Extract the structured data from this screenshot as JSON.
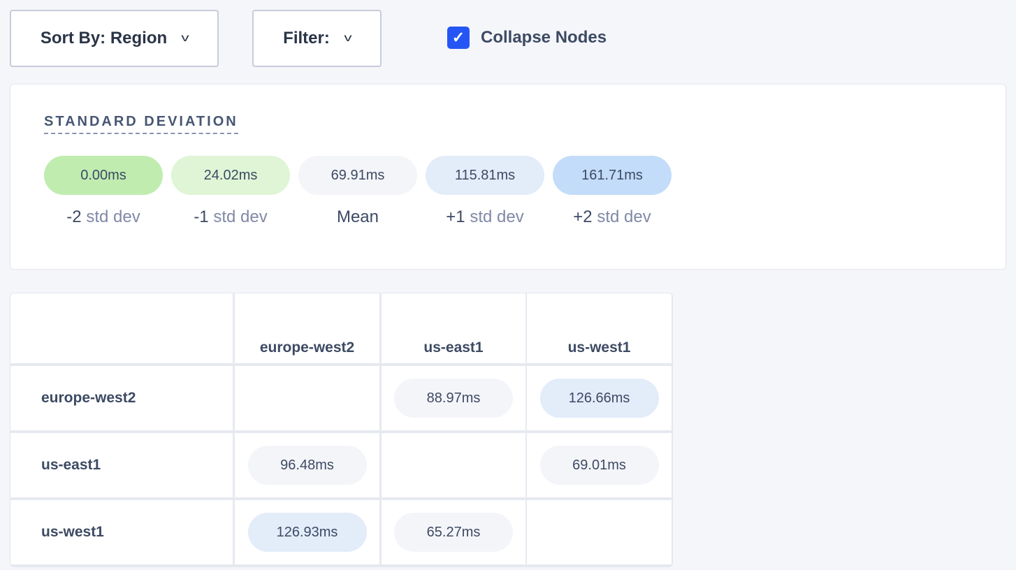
{
  "toolbar": {
    "sort_label": "Sort By: Region",
    "filter_label": "Filter:",
    "collapse_label": "Collapse Nodes",
    "collapse_checked": true
  },
  "legend": {
    "title": "STANDARD DEVIATION",
    "items": [
      {
        "value": "0.00ms",
        "prefix": "-2",
        "suffix": "std dev",
        "color": "#c0ecb0"
      },
      {
        "value": "24.02ms",
        "prefix": "-1",
        "suffix": "std dev",
        "color": "#dff5d6"
      },
      {
        "value": "69.91ms",
        "prefix": "Mean",
        "suffix": "",
        "color": "#f4f5f9"
      },
      {
        "value": "115.81ms",
        "prefix": "+1",
        "suffix": "std dev",
        "color": "#e3ecf9"
      },
      {
        "value": "161.71ms",
        "prefix": "+2",
        "suffix": "std dev",
        "color": "#c3dcf9"
      }
    ]
  },
  "matrix": {
    "columns": [
      "europe-west2",
      "us-east1",
      "us-west1"
    ],
    "rows": [
      {
        "label": "europe-west2",
        "cells": [
          "",
          "88.97ms",
          "126.66ms"
        ],
        "colors": [
          "",
          "#f4f5f9",
          "#e3ecf9"
        ]
      },
      {
        "label": "us-east1",
        "cells": [
          "96.48ms",
          "",
          "69.01ms"
        ],
        "colors": [
          "#f4f5f9",
          "",
          "#f4f5f9"
        ]
      },
      {
        "label": "us-west1",
        "cells": [
          "126.93ms",
          "65.27ms",
          ""
        ],
        "colors": [
          "#e3ecf9",
          "#f4f5f9",
          ""
        ]
      }
    ]
  }
}
